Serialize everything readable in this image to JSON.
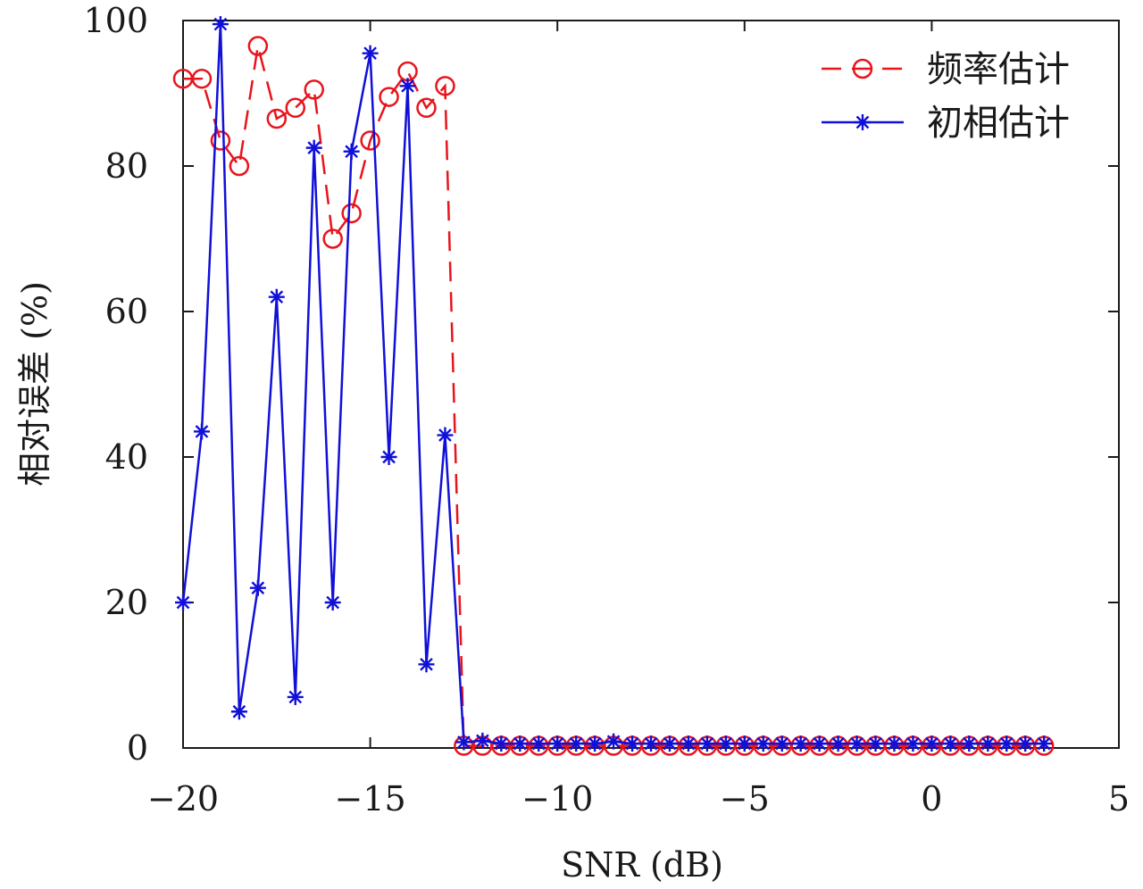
{
  "chart_data": {
    "type": "line",
    "xlabel": "SNR (dB)",
    "ylabel": "相对误差 (%)",
    "xlim": [
      -20,
      5
    ],
    "ylim": [
      0,
      100
    ],
    "xticks": [
      -20,
      -15,
      -10,
      -5,
      0,
      5
    ],
    "xtick_labels": [
      "−20",
      "−15",
      "−10",
      "−5",
      "0",
      "5"
    ],
    "yticks": [
      0,
      20,
      40,
      60,
      80,
      100
    ],
    "ytick_labels": [
      "0",
      "20",
      "40",
      "60",
      "80",
      "100"
    ],
    "grid": false,
    "legend_position": "top-right",
    "series": [
      {
        "name": "频率估计",
        "color": "#e8141c",
        "line_style": "dashed",
        "marker": "circle",
        "x": [
          -20,
          -19.5,
          -19,
          -18.5,
          -18,
          -17.5,
          -17,
          -16.5,
          -16,
          -15.5,
          -15,
          -14.5,
          -14,
          -13.5,
          -13,
          -12.5,
          -12,
          -11.5,
          -11,
          -10.5,
          -10,
          -9.5,
          -9,
          -8.5,
          -8,
          -7.5,
          -7,
          -6.5,
          -6,
          -5.5,
          -5,
          -4.5,
          -4,
          -3.5,
          -3,
          -2.5,
          -2,
          -1.5,
          -1,
          -0.5,
          0,
          0.5,
          1,
          1.5,
          2,
          2.5,
          3
        ],
        "y": [
          92,
          92,
          83.5,
          80,
          96.5,
          86.5,
          88,
          90.5,
          70,
          73.5,
          83.5,
          89.5,
          93,
          88,
          91,
          0.3,
          0.3,
          0.3,
          0.3,
          0.3,
          0.3,
          0.3,
          0.3,
          0.3,
          0.3,
          0.3,
          0.3,
          0.3,
          0.3,
          0.3,
          0.3,
          0.3,
          0.3,
          0.3,
          0.3,
          0.3,
          0.3,
          0.3,
          0.3,
          0.3,
          0.3,
          0.3,
          0.3,
          0.3,
          0.3,
          0.3,
          0.3
        ]
      },
      {
        "name": "初相估计",
        "color": "#1010d8",
        "line_style": "solid",
        "marker": "asterisk",
        "x": [
          -20,
          -19.5,
          -19,
          -18.5,
          -18,
          -17.5,
          -17,
          -16.5,
          -16,
          -15.5,
          -15,
          -14.5,
          -14,
          -13.5,
          -13,
          -12.5,
          -12,
          -11.5,
          -11,
          -10.5,
          -10,
          -9.5,
          -9,
          -8.5,
          -8,
          -7.5,
          -7,
          -6.5,
          -6,
          -5.5,
          -5,
          -4.5,
          -4,
          -3.5,
          -3,
          -2.5,
          -2,
          -1.5,
          -1,
          -0.5,
          0,
          0.5,
          1,
          1.5,
          2,
          2.5,
          3
        ],
        "y": [
          20,
          43.5,
          99.5,
          5,
          22,
          62,
          7,
          82.5,
          20,
          82,
          95.5,
          40,
          91,
          11.5,
          43,
          0.8,
          1,
          0.6,
          0.6,
          0.6,
          0.6,
          0.6,
          0.6,
          0.9,
          0.6,
          0.6,
          0.6,
          0.6,
          0.6,
          0.6,
          0.6,
          0.6,
          0.6,
          0.6,
          0.6,
          0.6,
          0.6,
          0.6,
          0.6,
          0.6,
          0.6,
          0.6,
          0.6,
          0.6,
          0.6,
          0.6,
          0.6
        ]
      }
    ]
  }
}
